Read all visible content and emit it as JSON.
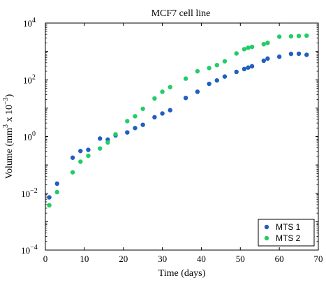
{
  "chart_data": {
    "type": "scatter",
    "title": "MCF7 cell line",
    "xlabel": "Time (days)",
    "ylabel": {
      "main": "Volume (mm",
      "sup1": "3",
      "mid": " x 10",
      "sup2": "−3",
      "end": ")"
    },
    "xlim": [
      0,
      70
    ],
    "ylim": [
      0.0001,
      10000
    ],
    "y_scale": "log",
    "grid": false,
    "legend_position": "bottom-right",
    "x_ticks": [
      {
        "value": 0,
        "label": "0"
      },
      {
        "value": 10,
        "label": "10"
      },
      {
        "value": 20,
        "label": "20"
      },
      {
        "value": 30,
        "label": "30"
      },
      {
        "value": 40,
        "label": "40"
      },
      {
        "value": 50,
        "label": "50"
      },
      {
        "value": 60,
        "label": "60"
      },
      {
        "value": 70,
        "label": "70"
      }
    ],
    "y_ticks": [
      {
        "value": 0.0001,
        "base": "10",
        "exp": "-4"
      },
      {
        "value": 0.01,
        "base": "10",
        "exp": "-2"
      },
      {
        "value": 1,
        "base": "10",
        "exp": "0"
      },
      {
        "value": 100,
        "base": "10",
        "exp": "2"
      },
      {
        "value": 10000,
        "base": "10",
        "exp": "4"
      }
    ],
    "series": [
      {
        "name": "MTS 1",
        "color": "#1f5fbf",
        "points": [
          {
            "x": 1,
            "y": 0.0072
          },
          {
            "x": 3,
            "y": 0.022
          },
          {
            "x": 7,
            "y": 0.18
          },
          {
            "x": 9,
            "y": 0.31
          },
          {
            "x": 11,
            "y": 0.34
          },
          {
            "x": 14,
            "y": 0.85
          },
          {
            "x": 16,
            "y": 0.78
          },
          {
            "x": 18,
            "y": 1.1
          },
          {
            "x": 21,
            "y": 1.4
          },
          {
            "x": 23,
            "y": 2.0
          },
          {
            "x": 25,
            "y": 2.6
          },
          {
            "x": 28,
            "y": 4.8
          },
          {
            "x": 30,
            "y": 6.5
          },
          {
            "x": 32,
            "y": 8.5
          },
          {
            "x": 36,
            "y": 23
          },
          {
            "x": 39,
            "y": 38
          },
          {
            "x": 42,
            "y": 72
          },
          {
            "x": 44,
            "y": 95
          },
          {
            "x": 46,
            "y": 130
          },
          {
            "x": 49,
            "y": 190
          },
          {
            "x": 51,
            "y": 240
          },
          {
            "x": 52,
            "y": 270
          },
          {
            "x": 53,
            "y": 300
          },
          {
            "x": 56,
            "y": 470
          },
          {
            "x": 57,
            "y": 560
          },
          {
            "x": 60,
            "y": 650
          },
          {
            "x": 63,
            "y": 820
          },
          {
            "x": 65,
            "y": 830
          },
          {
            "x": 67,
            "y": 760
          }
        ]
      },
      {
        "name": "MTS 2",
        "color": "#22cc66",
        "points": [
          {
            "x": 1,
            "y": 0.0038
          },
          {
            "x": 3,
            "y": 0.011
          },
          {
            "x": 7,
            "y": 0.055
          },
          {
            "x": 9,
            "y": 0.13
          },
          {
            "x": 11,
            "y": 0.21
          },
          {
            "x": 14,
            "y": 0.38
          },
          {
            "x": 16,
            "y": 0.62
          },
          {
            "x": 18,
            "y": 1.2
          },
          {
            "x": 21,
            "y": 3.5
          },
          {
            "x": 23,
            "y": 5.2
          },
          {
            "x": 25,
            "y": 9.5
          },
          {
            "x": 28,
            "y": 22
          },
          {
            "x": 30,
            "y": 38
          },
          {
            "x": 32,
            "y": 55
          },
          {
            "x": 36,
            "y": 110
          },
          {
            "x": 39,
            "y": 200
          },
          {
            "x": 42,
            "y": 260
          },
          {
            "x": 44,
            "y": 330
          },
          {
            "x": 46,
            "y": 450
          },
          {
            "x": 49,
            "y": 850
          },
          {
            "x": 51,
            "y": 1200
          },
          {
            "x": 52,
            "y": 1350
          },
          {
            "x": 53,
            "y": 1450
          },
          {
            "x": 56,
            "y": 1800
          },
          {
            "x": 57,
            "y": 2000
          },
          {
            "x": 60,
            "y": 3300
          },
          {
            "x": 63,
            "y": 3400
          },
          {
            "x": 65,
            "y": 3500
          },
          {
            "x": 67,
            "y": 3600
          }
        ]
      }
    ]
  }
}
